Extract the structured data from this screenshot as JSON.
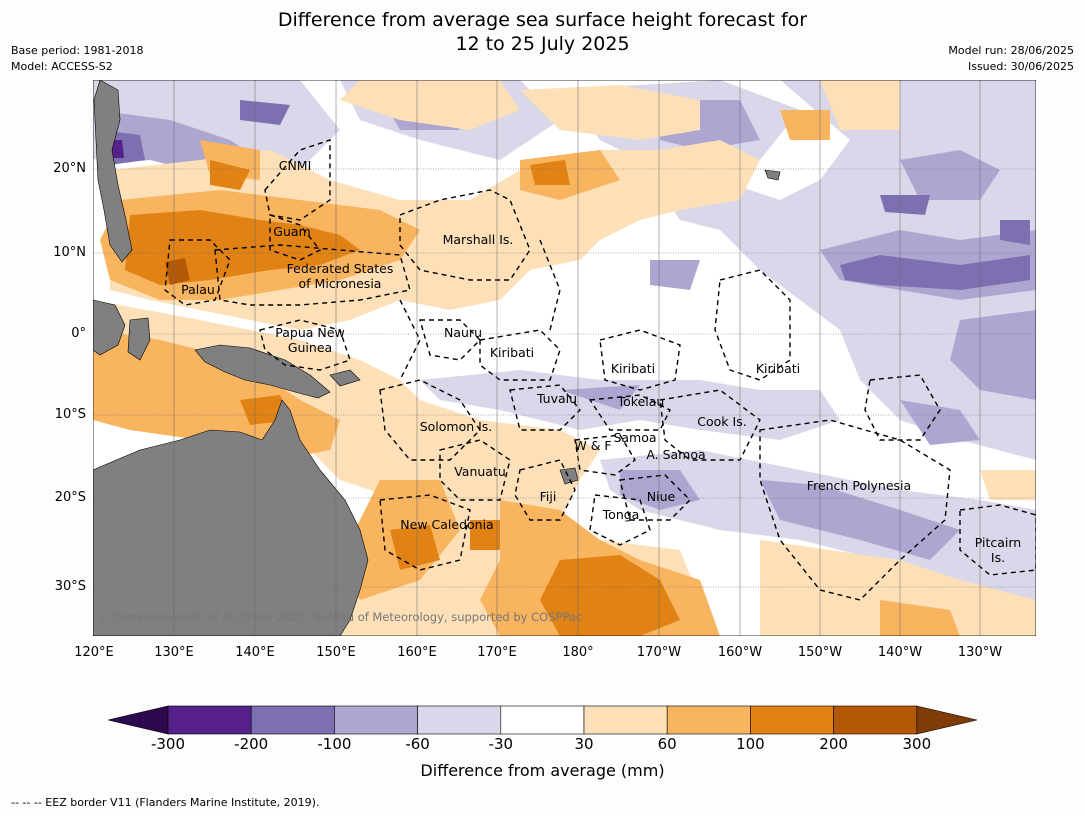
{
  "title_line1": "Difference from average sea surface height forecast for",
  "title_line2": "12 to 25 July 2025",
  "meta_left": [
    "Base period: 1981-2018",
    "Model: ACCESS-S2"
  ],
  "meta_right": [
    "Model run: 28/06/2025",
    "Issued: 30/06/2025"
  ],
  "copyright": "© Commonwealth of Australia 2025, Bureau of Meteorology, supported by COSPPac",
  "footer": "-- -- -- EEZ border V11 (Flanders Marine Institute, 2019).",
  "colorbar": {
    "title": "Difference from average (mm)",
    "ticks": [
      "-300",
      "-200",
      "-100",
      "-60",
      "-30",
      "30",
      "60",
      "100",
      "200",
      "300"
    ],
    "colors": [
      "#2d0a4e",
      "#56218a",
      "#7e70b0",
      "#ada6d0",
      "#d8d8ea",
      "#ffffff",
      "#fde0b8",
      "#f8b45e",
      "#e08214",
      "#b35806",
      "#7f3b08"
    ]
  },
  "axes": {
    "lon_labels": [
      "120°E",
      "130°E",
      "140°E",
      "150°E",
      "160°E",
      "170°E",
      "180°",
      "170°W",
      "160°W",
      "150°W",
      "140°W",
      "130°W"
    ],
    "lat_labels": [
      "20°N",
      "10°N",
      "0°",
      "10°S",
      "20°S",
      "30°S"
    ]
  },
  "regions": [
    "CNMI",
    "Guam",
    "Marshall Is.",
    "Federated States",
    "of Micronesia",
    "Palau",
    "Papua New",
    "Guinea",
    "Nauru",
    "Kiribati",
    "Kiribati",
    "Kiribati",
    "Tuvalu",
    "Tokelau",
    "Cook Is.",
    "Solomon Is.",
    "W & F",
    "Samoa",
    "A. Samoa",
    "Vanuatu",
    "Fiji",
    "Niue",
    "French Polynesia",
    "Tonga",
    "New Caledonia",
    "Pitcairn",
    "Is."
  ],
  "colors": {
    "land": "#808080",
    "eez": "#000000",
    "grid": "#666666"
  }
}
